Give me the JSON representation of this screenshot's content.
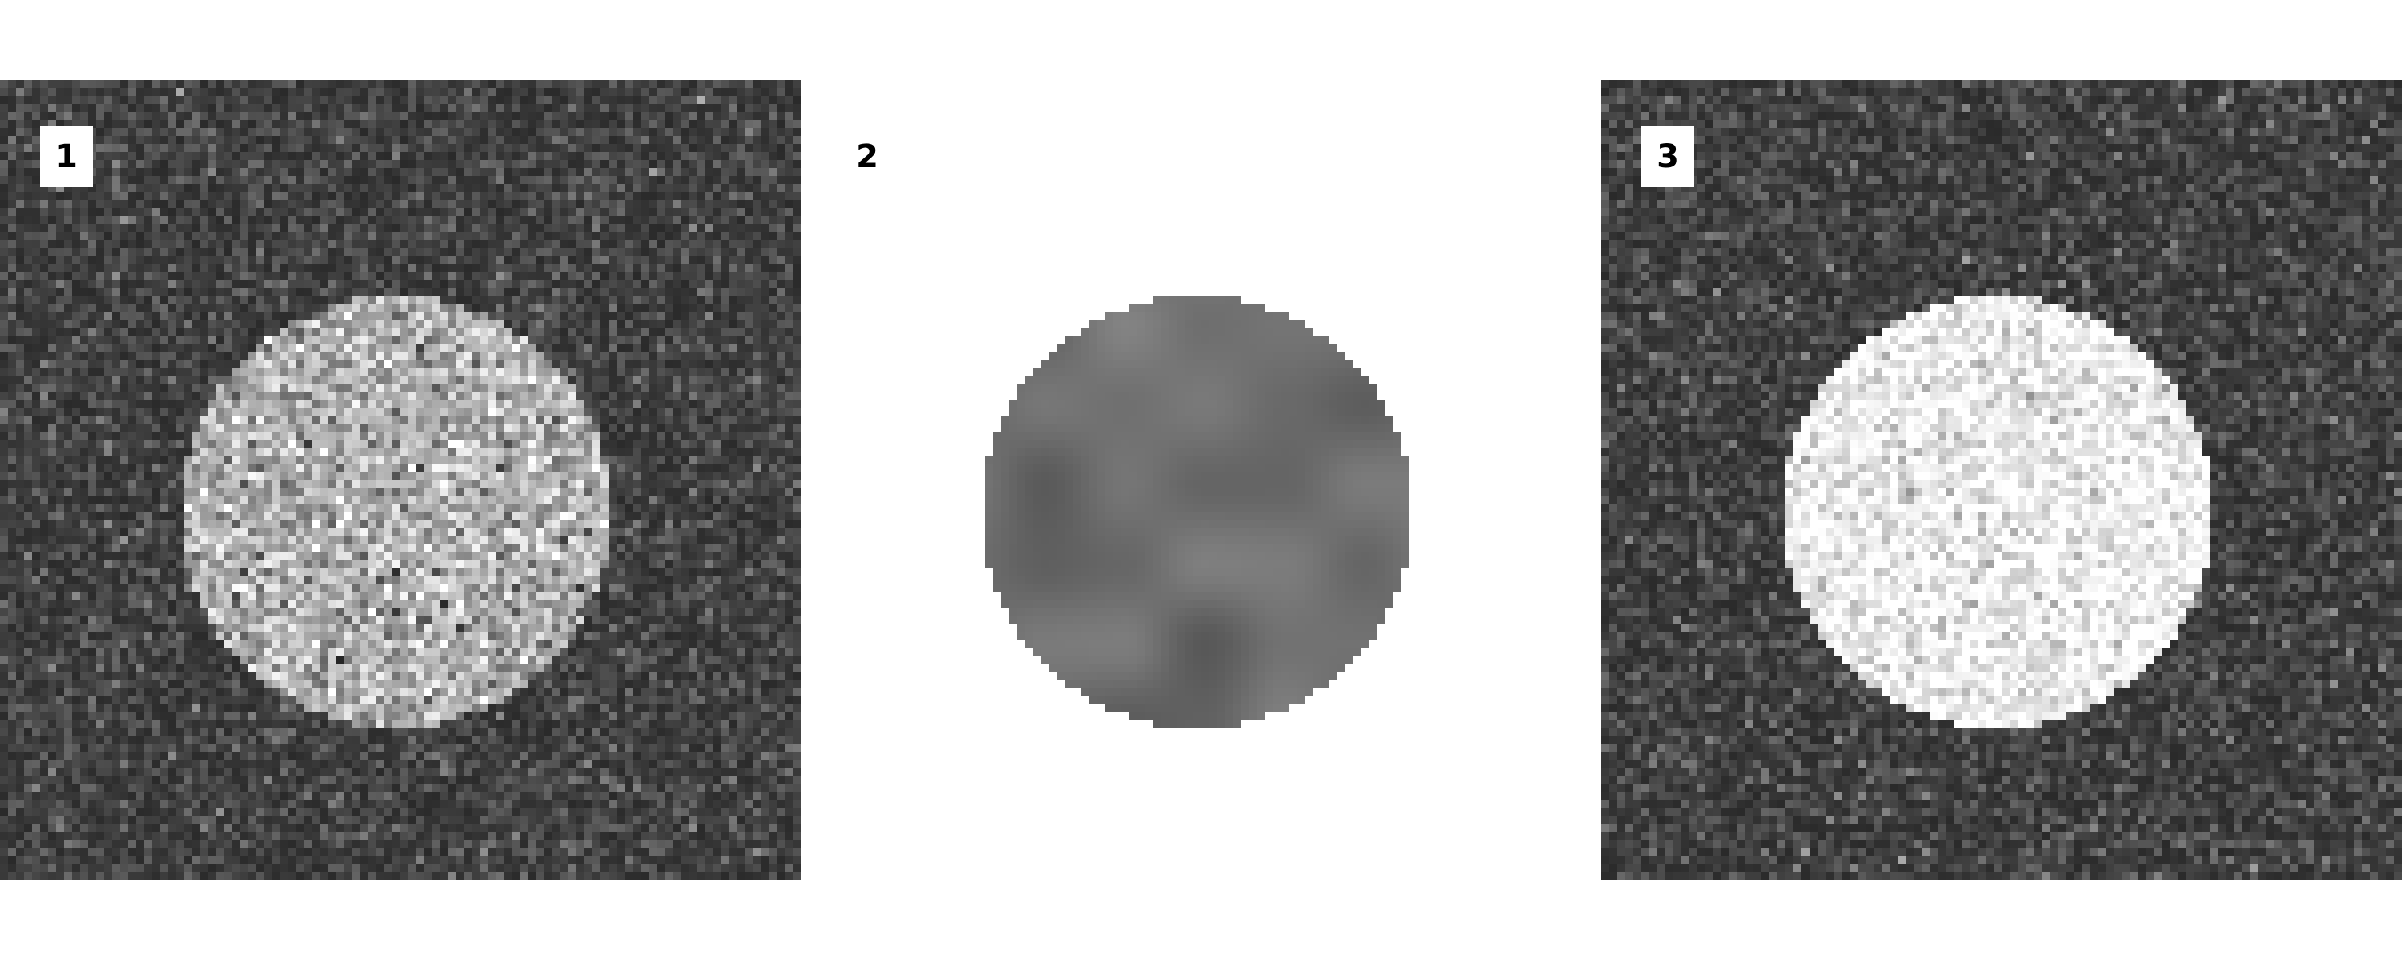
{
  "panels": [
    {
      "label": "1",
      "kind": "noisy-disc-on-noise",
      "label_box": true
    },
    {
      "label": "2",
      "kind": "smoothed-disc-on-white",
      "label_box": false
    },
    {
      "label": "3",
      "kind": "bright-disc-on-noise",
      "label_box": true
    }
  ],
  "colors": {
    "page_background": "#ffffff",
    "label_text": "#000000",
    "label_box": "#ffffff"
  }
}
